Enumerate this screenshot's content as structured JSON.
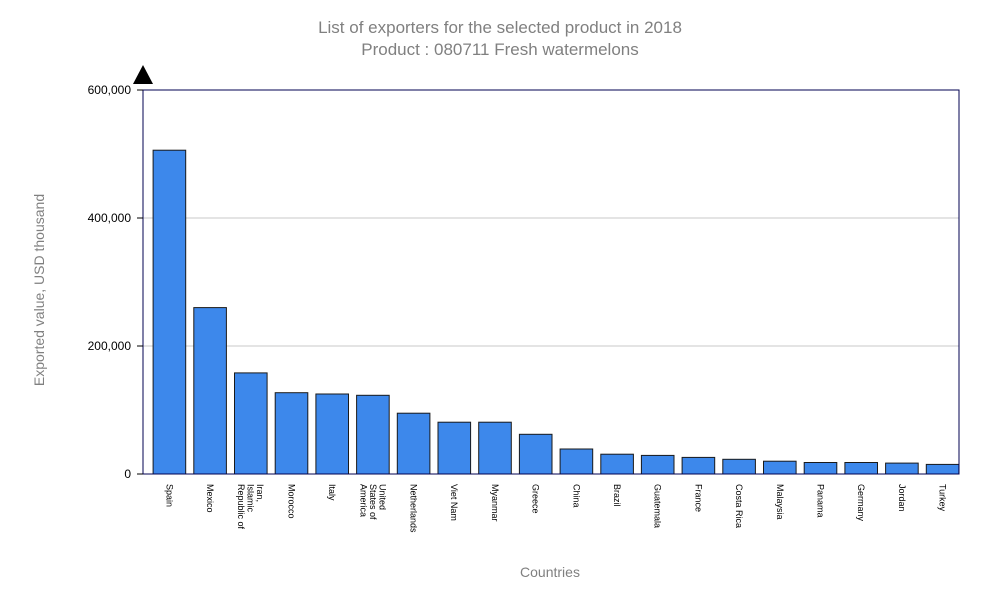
{
  "chart_data": {
    "type": "bar",
    "title": "List of exporters for the selected product in 2018",
    "subtitle": "Product : 080711 Fresh watermelons",
    "xlabel": "Countries",
    "ylabel": "Exported value, USD thousand",
    "ylim": [
      0,
      600000
    ],
    "yticks": [
      0,
      200000,
      400000,
      600000
    ],
    "ytick_labels": [
      "0",
      "200,000",
      "400,000",
      "600,000"
    ],
    "grid": true,
    "categories": [
      "Spain",
      "Mexico",
      "Iran, Islamic Republic of",
      "Morocco",
      "Italy",
      "United States of America",
      "Netherlands",
      "Viet Nam",
      "Myanmar",
      "Greece",
      "China",
      "Brazil",
      "Guatemala",
      "France",
      "Costa Rica",
      "Malaysia",
      "Panama",
      "Germany",
      "Jordan",
      "Turkey"
    ],
    "values": [
      506000,
      260000,
      158000,
      127000,
      125000,
      123000,
      95000,
      81000,
      81000,
      62000,
      39000,
      31000,
      29000,
      26000,
      23000,
      20000,
      18000,
      18000,
      17000,
      15000
    ],
    "colors": {
      "bar": "#3d88eb",
      "bar_stroke": "#1a1a1a",
      "axis": "#000050",
      "grid": "#c8c8c8",
      "text_muted": "#808080"
    }
  }
}
